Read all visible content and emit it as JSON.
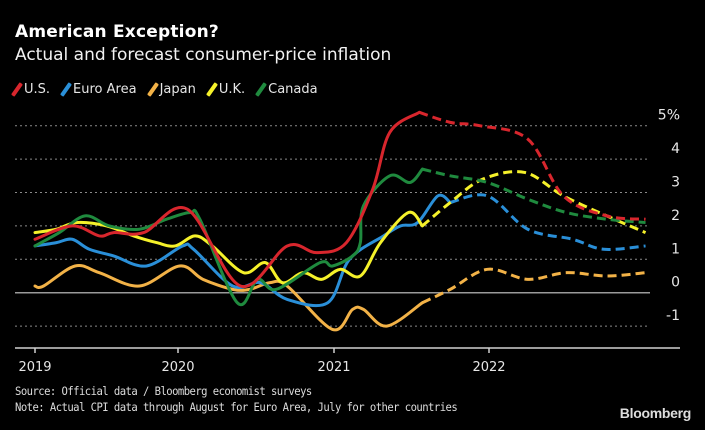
{
  "chart_data": {
    "type": "line",
    "title": "American Exception?",
    "subtitle": "Actual and forecast consumer-price inflation",
    "ylim": [
      -1.5,
      5.5
    ],
    "yticks": [
      -1,
      0,
      1,
      2,
      3,
      4,
      5
    ],
    "ytick_labels": [
      "-1",
      "0",
      "1",
      "2",
      "3",
      "4",
      "5%"
    ],
    "xticks": [
      2019,
      2020,
      2021,
      2022
    ],
    "xtick_labels": [
      "2019",
      "2020",
      "2021",
      "2022"
    ],
    "grid": true,
    "legend_placement": "top-left",
    "series": [
      {
        "name": "U.S.",
        "color": "#d8262d",
        "actual": [
          [
            2019.0,
            1.6
          ],
          [
            2019.26,
            2.0
          ],
          [
            2019.45,
            1.7
          ],
          [
            2019.55,
            1.8
          ],
          [
            2019.76,
            1.8
          ],
          [
            2020.06,
            2.5
          ],
          [
            2020.4,
            0.2
          ],
          [
            2020.7,
            1.4
          ],
          [
            2020.89,
            1.2
          ],
          [
            2021.08,
            1.5
          ],
          [
            2021.25,
            3.1
          ],
          [
            2021.36,
            4.8
          ],
          [
            2021.55,
            5.4
          ]
        ],
        "forecast": [
          [
            2021.55,
            5.4
          ],
          [
            2021.75,
            5.1
          ],
          [
            2021.94,
            5.0
          ],
          [
            2022.25,
            4.6
          ],
          [
            2022.48,
            2.9
          ],
          [
            2022.76,
            2.3
          ],
          [
            2023.01,
            2.2
          ]
        ]
      },
      {
        "name": "Euro Area",
        "color": "#2a8fd8",
        "actual": [
          [
            2019.0,
            1.4
          ],
          [
            2019.15,
            1.5
          ],
          [
            2019.26,
            1.6
          ],
          [
            2019.38,
            1.3
          ],
          [
            2019.55,
            1.1
          ],
          [
            2019.78,
            0.8
          ],
          [
            2020.03,
            1.4
          ],
          [
            2020.1,
            1.3
          ],
          [
            2020.35,
            0.2
          ],
          [
            2020.53,
            0.3
          ],
          [
            2020.7,
            -0.2
          ],
          [
            2020.96,
            -0.3
          ],
          [
            2021.1,
            1.0
          ],
          [
            2021.32,
            1.7
          ],
          [
            2021.43,
            2.0
          ],
          [
            2021.54,
            2.1
          ],
          [
            2021.67,
            2.9
          ],
          [
            2021.75,
            2.7
          ]
        ],
        "forecast": [
          [
            2021.75,
            2.7
          ],
          [
            2021.99,
            2.9
          ],
          [
            2022.25,
            1.9
          ],
          [
            2022.54,
            1.6
          ],
          [
            2022.74,
            1.3
          ],
          [
            2023.01,
            1.4
          ]
        ]
      },
      {
        "name": "Japan",
        "color": "#f2b247",
        "actual": [
          [
            2019.0,
            0.2
          ],
          [
            2019.06,
            0.2
          ],
          [
            2019.28,
            0.8
          ],
          [
            2019.45,
            0.6
          ],
          [
            2019.73,
            0.2
          ],
          [
            2020.01,
            0.8
          ],
          [
            2020.16,
            0.4
          ],
          [
            2020.35,
            0.1
          ],
          [
            2020.46,
            0.1
          ],
          [
            2020.59,
            0.3
          ],
          [
            2020.7,
            0.2
          ],
          [
            2020.99,
            -1.1
          ],
          [
            2021.12,
            -0.5
          ],
          [
            2021.19,
            -0.5
          ],
          [
            2021.34,
            -1.0
          ],
          [
            2021.57,
            -0.3
          ]
        ],
        "forecast": [
          [
            2021.57,
            -0.3
          ],
          [
            2021.75,
            0.1
          ],
          [
            2021.99,
            0.7
          ],
          [
            2022.25,
            0.4
          ],
          [
            2022.5,
            0.6
          ],
          [
            2022.76,
            0.5
          ],
          [
            2023.01,
            0.6
          ]
        ]
      },
      {
        "name": "U.K.",
        "color": "#f5f12a",
        "actual": [
          [
            2019.0,
            1.8
          ],
          [
            2019.15,
            1.9
          ],
          [
            2019.29,
            2.1
          ],
          [
            2019.5,
            2.0
          ],
          [
            2019.69,
            1.7
          ],
          [
            2019.85,
            1.5
          ],
          [
            2019.98,
            1.4
          ],
          [
            2020.11,
            1.7
          ],
          [
            2020.22,
            1.4
          ],
          [
            2020.42,
            0.6
          ],
          [
            2020.56,
            0.9
          ],
          [
            2020.67,
            0.3
          ],
          [
            2020.8,
            0.6
          ],
          [
            2020.92,
            0.4
          ],
          [
            2021.04,
            0.7
          ],
          [
            2021.17,
            0.5
          ],
          [
            2021.3,
            1.5
          ],
          [
            2021.48,
            2.4
          ],
          [
            2021.57,
            2.0
          ]
        ],
        "forecast": [
          [
            2021.57,
            2.0
          ],
          [
            2021.75,
            2.7
          ],
          [
            2021.96,
            3.4
          ],
          [
            2022.23,
            3.6
          ],
          [
            2022.48,
            2.9
          ],
          [
            2022.76,
            2.3
          ],
          [
            2023.01,
            1.8
          ]
        ]
      },
      {
        "name": "Canada",
        "color": "#1f8a3e",
        "actual": [
          [
            2019.0,
            1.4
          ],
          [
            2019.17,
            1.8
          ],
          [
            2019.35,
            2.3
          ],
          [
            2019.52,
            2.0
          ],
          [
            2019.73,
            1.9
          ],
          [
            2019.92,
            2.2
          ],
          [
            2020.08,
            2.4
          ],
          [
            2020.14,
            2.2
          ],
          [
            2020.38,
            -0.3
          ],
          [
            2020.51,
            0.4
          ],
          [
            2020.63,
            0.1
          ],
          [
            2020.91,
            0.9
          ],
          [
            2020.99,
            0.8
          ],
          [
            2021.12,
            1.1
          ],
          [
            2021.17,
            1.5
          ],
          [
            2021.19,
            2.6
          ],
          [
            2021.36,
            3.5
          ],
          [
            2021.49,
            3.3
          ],
          [
            2021.57,
            3.7
          ]
        ],
        "forecast": [
          [
            2021.57,
            3.7
          ],
          [
            2021.75,
            3.5
          ],
          [
            2021.99,
            3.3
          ],
          [
            2022.25,
            2.8
          ],
          [
            2022.5,
            2.4
          ],
          [
            2022.76,
            2.2
          ],
          [
            2023.01,
            2.1
          ]
        ]
      }
    ]
  },
  "footer": {
    "source": "Source: Official data / Bloomberg economist surveys",
    "note": "Note: Actual CPI data through August for Euro Area, July for other countries",
    "brand": "Bloomberg"
  }
}
